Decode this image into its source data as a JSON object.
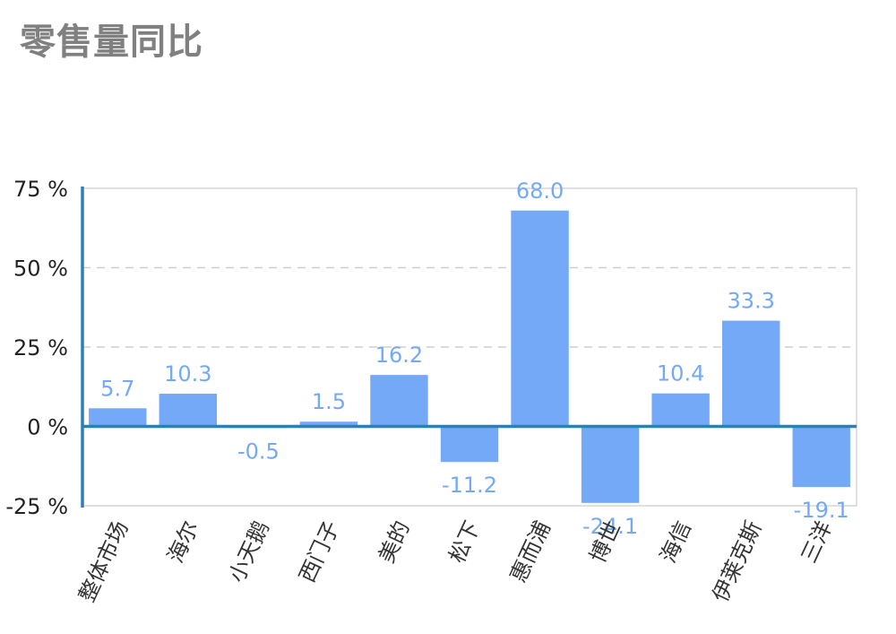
{
  "chart_data": {
    "type": "bar",
    "title": "零售量同比",
    "categories": [
      "整体市场",
      "海尔",
      "小天鹅",
      "西门子",
      "美的",
      "松下",
      "惠而浦",
      "博世",
      "海信",
      "伊莱克斯",
      "三洋"
    ],
    "values": [
      5.7,
      10.3,
      -0.5,
      1.5,
      16.2,
      -11.2,
      68.0,
      -24.1,
      10.4,
      33.3,
      -19.1
    ],
    "value_labels": [
      "5.7",
      "10.3",
      "-0.5",
      "1.5",
      "16.2",
      "-11.2",
      "68.0",
      "-24.1",
      "10.4",
      "33.3",
      "-19.1"
    ],
    "ylim": [
      -25,
      75
    ],
    "yticks": [
      75,
      50,
      25,
      0,
      -25
    ],
    "ytick_labels": [
      "75 %",
      "50 %",
      "25 %",
      "0 %",
      "-25 %"
    ],
    "grid": true,
    "legend": "none",
    "colors": {
      "bar": "#74a9f8",
      "label": "#74a9f8",
      "zero_line": "#2f7fb5",
      "left_axis": "#2f7fb5",
      "grid": "#cfcfcf",
      "frame": "#d6d6d6",
      "tick_text": "#222222",
      "category_text": "#333333"
    }
  }
}
